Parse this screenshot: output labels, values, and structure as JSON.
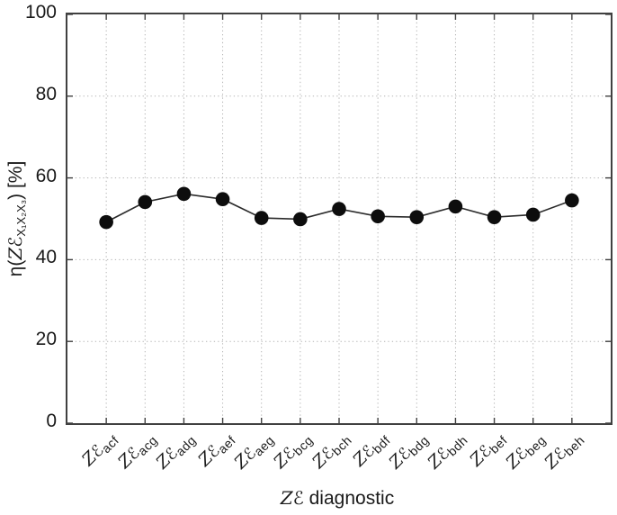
{
  "figure": {
    "xlabel": {
      "ze_z": "Z",
      "ze_e": "ℰ",
      "text": " diagnostic"
    },
    "ylabel": {
      "pre": "η(",
      "ze_z": "Z",
      "ze_e": "ℰ",
      "sub": "X₁X₂X₃",
      "post": ") [%]"
    }
  },
  "chart_data": {
    "type": "line",
    "title": "",
    "xlabel": "ZE diagnostic",
    "ylabel": "eta(ZE_X1X2X3) [%]",
    "categories": [
      "ZE_acf",
      "ZE_acg",
      "ZE_adg",
      "ZE_aef",
      "ZE_aeg",
      "ZE_bcg",
      "ZE_bch",
      "ZE_bdf",
      "ZE_bdg",
      "ZE_bdh",
      "ZE_bef",
      "ZE_beg",
      "ZE_beh"
    ],
    "category_prefix": {
      "z": "Z",
      "e": "ℰ"
    },
    "category_subscripts": [
      "acf",
      "acg",
      "adg",
      "aef",
      "aeg",
      "bcg",
      "bch",
      "bdf",
      "bdg",
      "bdh",
      "bef",
      "beg",
      "beh"
    ],
    "values": [
      49.2,
      54.1,
      56.1,
      54.8,
      50.2,
      49.9,
      52.4,
      50.6,
      50.4,
      53.0,
      50.4,
      51.0,
      54.5
    ],
    "yticks": [
      0,
      20,
      40,
      60,
      80,
      100
    ],
    "ylim": [
      0,
      100
    ],
    "grid": "dotted-both-axes",
    "legend": "none",
    "marker": "filled-circle",
    "marker_radius_px": 7.8,
    "line_color": "#2b2b2b",
    "marker_color": "#0d0d0d",
    "grid_color": "#b3b3b3",
    "axis_color": "#404040",
    "tick_direction": "in"
  }
}
